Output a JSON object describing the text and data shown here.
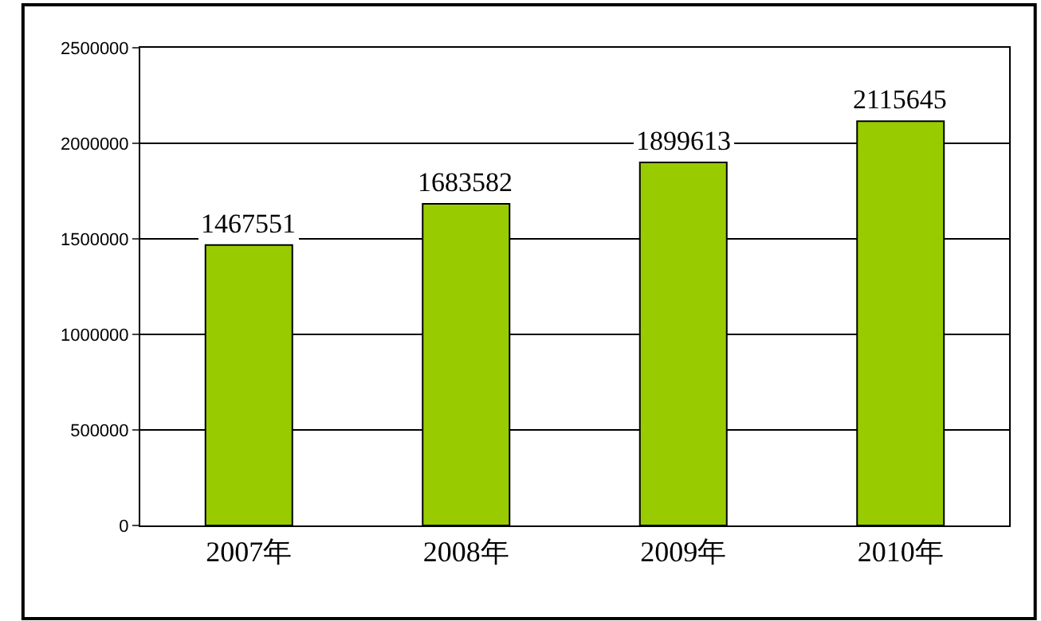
{
  "chart_data": {
    "type": "bar",
    "categories": [
      "2007年",
      "2008年",
      "2009年",
      "2010年"
    ],
    "values": [
      1467551,
      1683582,
      1899613,
      2115645
    ],
    "color": "#99cc00",
    "ylim": [
      0,
      2500000
    ],
    "yticks": [
      0,
      500000,
      1000000,
      1500000,
      2000000,
      2500000
    ],
    "grid": "y",
    "data_labels": true
  }
}
